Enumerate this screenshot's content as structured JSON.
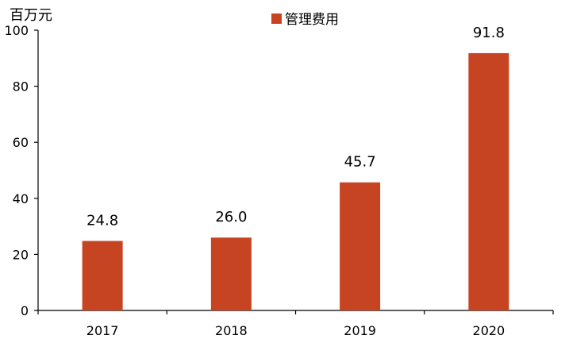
{
  "chart_data": {
    "type": "bar",
    "categories": [
      "2017",
      "2018",
      "2019",
      "2020"
    ],
    "series": [
      {
        "name": "管理费用",
        "values": [
          24.8,
          26.0,
          45.7,
          91.8
        ]
      }
    ],
    "data_labels": [
      "24.8",
      "26.0",
      "45.7",
      "91.8"
    ],
    "ylabel": "百万元",
    "ylim": [
      0,
      100
    ],
    "yticks": [
      0,
      20,
      40,
      60,
      80,
      100
    ],
    "ytick_labels": [
      "0",
      "20",
      "40",
      "60",
      "80",
      "100"
    ],
    "legend_position": "top-center",
    "grid": false,
    "bar_color": "#c64422"
  }
}
